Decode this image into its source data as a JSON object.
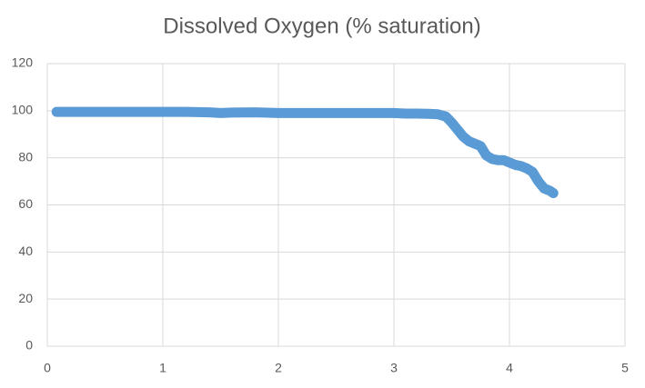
{
  "chart_data": {
    "type": "line",
    "title": "Dissolved Oxygen (% saturation)",
    "x": [
      0.08,
      0.2,
      0.4,
      0.6,
      0.8,
      1.0,
      1.2,
      1.4,
      1.5,
      1.6,
      1.8,
      2.0,
      2.2,
      2.4,
      2.6,
      2.8,
      3.0,
      3.1,
      3.2,
      3.3,
      3.38,
      3.45,
      3.5,
      3.55,
      3.6,
      3.65,
      3.7,
      3.75,
      3.8,
      3.85,
      3.9,
      3.95,
      4.0,
      4.05,
      4.1,
      4.15,
      4.2,
      4.25,
      4.3,
      4.35,
      4.38
    ],
    "values": [
      99.5,
      99.5,
      99.5,
      99.5,
      99.5,
      99.5,
      99.5,
      99.3,
      99,
      99.2,
      99.3,
      99,
      99,
      99,
      99,
      99,
      99,
      98.8,
      98.8,
      98.7,
      98.5,
      97.5,
      95,
      92,
      89,
      87,
      86,
      85,
      81,
      79.5,
      79,
      79,
      78,
      77,
      76.5,
      75.5,
      74,
      70,
      67,
      66,
      65
    ],
    "color": "#5b9bd5",
    "xlim": [
      0,
      5
    ],
    "xticks": [
      0,
      1,
      2,
      3,
      4,
      5
    ],
    "ylim": [
      0,
      120
    ],
    "yticks": [
      0,
      20,
      40,
      60,
      80,
      100,
      120
    ],
    "grid": true
  }
}
